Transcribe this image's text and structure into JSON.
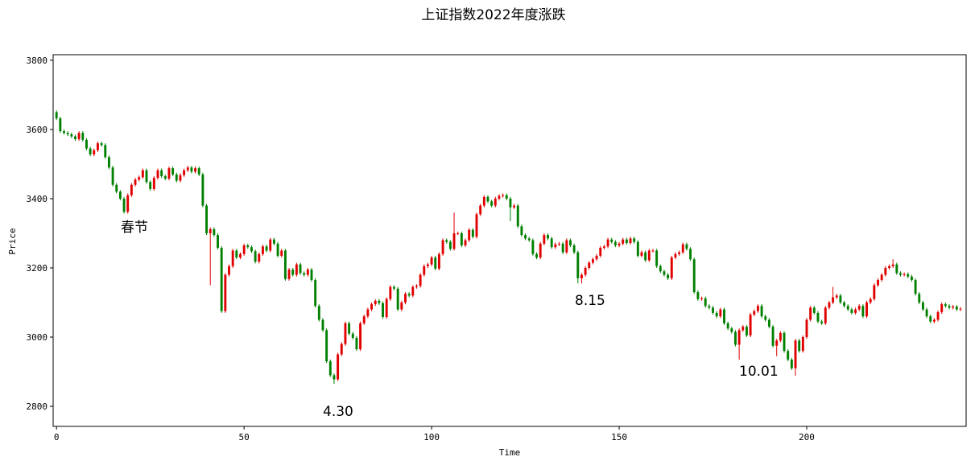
{
  "chart_data": {
    "type": "candlestick",
    "title": "上证指数2022年度涨跌",
    "xlabel": "Time",
    "ylabel": "Price",
    "up_color": "#e00000",
    "down_color": "#008000",
    "xlim": [
      -0.9,
      242.5
    ],
    "ylim": [
      2742,
      3816
    ],
    "xticks": [
      0,
      50,
      100,
      150,
      200
    ],
    "yticks": [
      2800,
      3000,
      3200,
      3400,
      3600,
      3800
    ],
    "annotations": [
      "春节",
      "4.30",
      "8.15",
      "10.01"
    ],
    "x": [
      0,
      1,
      2,
      3,
      4,
      5,
      6,
      7,
      8,
      9,
      10,
      11,
      12,
      13,
      14,
      15,
      16,
      17,
      18,
      19,
      20,
      21,
      22,
      23,
      24,
      25,
      26,
      27,
      28,
      29,
      30,
      31,
      32,
      33,
      34,
      35,
      36,
      37,
      38,
      39,
      40,
      41,
      42,
      43,
      44,
      45,
      46,
      47,
      48,
      49,
      50,
      51,
      52,
      53,
      54,
      55,
      56,
      57,
      58,
      59,
      60,
      61,
      62,
      63,
      64,
      65,
      66,
      67,
      68,
      69,
      70,
      71,
      72,
      73,
      74,
      75,
      76,
      77,
      78,
      79,
      80,
      81,
      82,
      83,
      84,
      85,
      86,
      87,
      88,
      89,
      90,
      91,
      92,
      93,
      94,
      95,
      96,
      97,
      98,
      99,
      100,
      101,
      102,
      103,
      104,
      105,
      106,
      107,
      108,
      109,
      110,
      111,
      112,
      113,
      114,
      115,
      116,
      117,
      118,
      119,
      120,
      121,
      122,
      123,
      124,
      125,
      126,
      127,
      128,
      129,
      130,
      131,
      132,
      133,
      134,
      135,
      136,
      137,
      138,
      139,
      140,
      141,
      142,
      143,
      144,
      145,
      146,
      147,
      148,
      149,
      150,
      151,
      152,
      153,
      154,
      155,
      156,
      157,
      158,
      159,
      160,
      161,
      162,
      163,
      164,
      165,
      166,
      167,
      168,
      169,
      170,
      171,
      172,
      173,
      174,
      175,
      176,
      177,
      178,
      179,
      180,
      181,
      182,
      183,
      184,
      185,
      186,
      187,
      188,
      189,
      190,
      191,
      192,
      193,
      194,
      195,
      196,
      197,
      198,
      199,
      200,
      201,
      202,
      203,
      204,
      205,
      206,
      207,
      208,
      209,
      210,
      211,
      212,
      213,
      214,
      215,
      216,
      217,
      218,
      219,
      220,
      221,
      222,
      223,
      224,
      225,
      226,
      227,
      228,
      229,
      230,
      231,
      232,
      233,
      234,
      235,
      236,
      237,
      238,
      239,
      240,
      241
    ],
    "open": [
      3650,
      3632,
      3595,
      3590,
      3586,
      3580,
      3572,
      3590,
      3570,
      3545,
      3528,
      3540,
      3560,
      3555,
      3520,
      3490,
      3440,
      3420,
      3400,
      3362,
      3410,
      3440,
      3455,
      3462,
      3482,
      3448,
      3428,
      3460,
      3482,
      3465,
      3458,
      3488,
      3470,
      3452,
      3468,
      3482,
      3490,
      3478,
      3488,
      3470,
      3380,
      3300,
      3312,
      3295,
      3258,
      3075,
      3180,
      3205,
      3250,
      3230,
      3240,
      3265,
      3260,
      3248,
      3218,
      3240,
      3262,
      3250,
      3282,
      3270,
      3235,
      3250,
      3168,
      3195,
      3180,
      3210,
      3185,
      3180,
      3195,
      3165,
      3090,
      3050,
      3020,
      2930,
      2890,
      2878,
      2950,
      2980,
      3040,
      3010,
      2998,
      2965,
      3040,
      3060,
      3080,
      3095,
      3105,
      3098,
      3058,
      3110,
      3145,
      3140,
      3080,
      3100,
      3125,
      3120,
      3145,
      3148,
      3180,
      3205,
      3210,
      3230,
      3198,
      3240,
      3280,
      3275,
      3255,
      3300,
      3300,
      3265,
      3280,
      3310,
      3290,
      3355,
      3380,
      3405,
      3392,
      3380,
      3400,
      3408,
      3410,
      3400,
      3375,
      3380,
      3320,
      3295,
      3285,
      3280,
      3240,
      3230,
      3270,
      3295,
      3285,
      3260,
      3268,
      3270,
      3245,
      3280,
      3265,
      3245,
      3170,
      3180,
      3200,
      3215,
      3225,
      3235,
      3258,
      3262,
      3282,
      3275,
      3265,
      3270,
      3282,
      3272,
      3285,
      3275,
      3235,
      3245,
      3222,
      3250,
      3250,
      3205,
      3190,
      3180,
      3170,
      3230,
      3240,
      3245,
      3268,
      3255,
      3225,
      3130,
      3110,
      3112,
      3090,
      3085,
      3070,
      3060,
      3080,
      3040,
      3025,
      3015,
      2978,
      3020,
      3030,
      3005,
      3065,
      3075,
      3090,
      3060,
      3050,
      3030,
      2975,
      2990,
      3012,
      2960,
      2935,
      2910,
      2990,
      2960,
      3000,
      3050,
      3085,
      3070,
      3045,
      3040,
      3085,
      3100,
      3115,
      3120,
      3100,
      3090,
      3080,
      3070,
      3080,
      3090,
      3060,
      3100,
      3110,
      3150,
      3165,
      3180,
      3200,
      3205,
      3210,
      3185,
      3180,
      3182,
      3175,
      3165,
      3125,
      3100,
      3080,
      3060,
      3045,
      3050,
      3072,
      3095,
      3090,
      3085,
      3088,
      3080
    ],
    "high": [
      3655,
      3637,
      3600,
      3595,
      3591,
      3585,
      3595,
      3595,
      3575,
      3550,
      3545,
      3565,
      3565,
      3560,
      3525,
      3495,
      3445,
      3425,
      3405,
      3415,
      3445,
      3460,
      3467,
      3487,
      3487,
      3453,
      3465,
      3487,
      3487,
      3470,
      3493,
      3493,
      3475,
      3473,
      3487,
      3495,
      3495,
      3493,
      3493,
      3475,
      3385,
      3317,
      3317,
      3300,
      3263,
      3185,
      3210,
      3255,
      3255,
      3245,
      3270,
      3270,
      3265,
      3253,
      3245,
      3267,
      3267,
      3287,
      3287,
      3275,
      3255,
      3255,
      3200,
      3200,
      3215,
      3215,
      3190,
      3200,
      3200,
      3170,
      3095,
      3055,
      3025,
      2935,
      2895,
      2955,
      2985,
      3045,
      3045,
      3015,
      3003,
      3045,
      3065,
      3085,
      3100,
      3110,
      3110,
      3103,
      3115,
      3150,
      3150,
      3145,
      3105,
      3130,
      3130,
      3150,
      3153,
      3185,
      3210,
      3215,
      3235,
      3235,
      3245,
      3285,
      3285,
      3280,
      3360,
      3305,
      3305,
      3285,
      3315,
      3315,
      3360,
      3385,
      3410,
      3410,
      3397,
      3405,
      3413,
      3415,
      3415,
      3405,
      3385,
      3385,
      3325,
      3300,
      3290,
      3285,
      3245,
      3275,
      3300,
      3300,
      3290,
      3273,
      3275,
      3275,
      3285,
      3285,
      3270,
      3250,
      3185,
      3205,
      3220,
      3230,
      3240,
      3263,
      3267,
      3287,
      3287,
      3280,
      3275,
      3287,
      3287,
      3290,
      3290,
      3280,
      3250,
      3250,
      3255,
      3255,
      3255,
      3210,
      3195,
      3185,
      3235,
      3245,
      3250,
      3273,
      3273,
      3260,
      3230,
      3135,
      3117,
      3117,
      3095,
      3090,
      3075,
      3085,
      3085,
      3045,
      3030,
      3020,
      3025,
      3035,
      3035,
      3070,
      3080,
      3095,
      3095,
      3065,
      3055,
      3035,
      2995,
      3017,
      3017,
      2965,
      2940,
      2995,
      2995,
      3005,
      3055,
      3090,
      3090,
      3075,
      3050,
      3090,
      3105,
      3145,
      3125,
      3125,
      3105,
      3095,
      3085,
      3085,
      3095,
      3095,
      3105,
      3115,
      3155,
      3170,
      3185,
      3205,
      3210,
      3225,
      3215,
      3190,
      3187,
      3187,
      3180,
      3170,
      3130,
      3105,
      3085,
      3065,
      3055,
      3077,
      3100,
      3100,
      3095,
      3093,
      3093,
      3087
    ],
    "low": [
      3627,
      3590,
      3585,
      3581,
      3575,
      3567,
      3567,
      3565,
      3540,
      3523,
      3523,
      3535,
      3550,
      3515,
      3485,
      3435,
      3415,
      3395,
      3357,
      3357,
      3405,
      3435,
      3450,
      3457,
      3443,
      3423,
      3423,
      3455,
      3460,
      3453,
      3453,
      3465,
      3447,
      3447,
      3463,
      3477,
      3473,
      3473,
      3465,
      3375,
      3295,
      3150,
      3290,
      3253,
      3070,
      3070,
      3175,
      3200,
      3225,
      3225,
      3235,
      3255,
      3243,
      3213,
      3213,
      3235,
      3245,
      3245,
      3265,
      3230,
      3230,
      3163,
      3163,
      3175,
      3175,
      3180,
      3175,
      3175,
      3160,
      3085,
      3045,
      3015,
      2925,
      2885,
      2865,
      2873,
      2945,
      2975,
      3005,
      2993,
      2960,
      2960,
      3035,
      3055,
      3075,
      3090,
      3093,
      3053,
      3053,
      3105,
      3135,
      3075,
      3075,
      3095,
      3115,
      3115,
      3140,
      3143,
      3175,
      3200,
      3205,
      3193,
      3193,
      3235,
      3270,
      3250,
      3250,
      3295,
      3260,
      3260,
      3275,
      3285,
      3285,
      3350,
      3375,
      3387,
      3375,
      3375,
      3395,
      3403,
      3395,
      3335,
      3370,
      3315,
      3290,
      3280,
      3275,
      3235,
      3225,
      3225,
      3265,
      3280,
      3255,
      3255,
      3263,
      3240,
      3240,
      3260,
      3240,
      3155,
      3155,
      3175,
      3195,
      3210,
      3220,
      3230,
      3253,
      3257,
      3270,
      3260,
      3260,
      3265,
      3267,
      3267,
      3270,
      3230,
      3230,
      3217,
      3217,
      3245,
      3200,
      3185,
      3175,
      3165,
      3165,
      3225,
      3235,
      3240,
      3250,
      3220,
      3125,
      3105,
      3105,
      3085,
      3080,
      3065,
      3055,
      3055,
      3035,
      3020,
      3010,
      2973,
      2935,
      3015,
      3000,
      3000,
      3060,
      3070,
      3055,
      3045,
      3025,
      2970,
      2945,
      2985,
      2955,
      2930,
      2905,
      2888,
      2955,
      2955,
      2995,
      3045,
      3065,
      3040,
      3035,
      3035,
      3080,
      3095,
      3110,
      3095,
      3085,
      3075,
      3065,
      3065,
      3075,
      3055,
      3055,
      3095,
      3105,
      3145,
      3160,
      3175,
      3195,
      3200,
      3180,
      3175,
      3175,
      3170,
      3160,
      3120,
      3095,
      3075,
      3055,
      3040,
      3040,
      3045,
      3067,
      3085,
      3080,
      3080,
      3075,
      3075
    ],
    "close": [
      3632,
      3595,
      3590,
      3586,
      3580,
      3572,
      3590,
      3570,
      3545,
      3528,
      3540,
      3560,
      3555,
      3520,
      3490,
      3440,
      3420,
      3400,
      3362,
      3410,
      3440,
      3455,
      3462,
      3482,
      3448,
      3428,
      3460,
      3482,
      3465,
      3458,
      3488,
      3470,
      3452,
      3468,
      3482,
      3490,
      3478,
      3488,
      3470,
      3380,
      3300,
      3312,
      3295,
      3258,
      3075,
      3180,
      3205,
      3250,
      3230,
      3240,
      3265,
      3260,
      3248,
      3218,
      3240,
      3262,
      3250,
      3282,
      3270,
      3235,
      3250,
      3168,
      3195,
      3180,
      3210,
      3185,
      3180,
      3195,
      3165,
      3090,
      3050,
      3020,
      2930,
      2890,
      2878,
      2950,
      2980,
      3040,
      3010,
      2998,
      2965,
      3040,
      3060,
      3080,
      3095,
      3105,
      3098,
      3058,
      3110,
      3145,
      3140,
      3080,
      3100,
      3125,
      3120,
      3145,
      3148,
      3180,
      3205,
      3210,
      3230,
      3198,
      3240,
      3280,
      3275,
      3255,
      3300,
      3300,
      3265,
      3280,
      3310,
      3290,
      3355,
      3380,
      3405,
      3392,
      3380,
      3400,
      3408,
      3410,
      3400,
      3375,
      3380,
      3320,
      3295,
      3285,
      3280,
      3240,
      3230,
      3270,
      3295,
      3285,
      3260,
      3268,
      3270,
      3245,
      3280,
      3265,
      3245,
      3170,
      3180,
      3200,
      3215,
      3225,
      3235,
      3258,
      3262,
      3282,
      3275,
      3265,
      3270,
      3282,
      3272,
      3285,
      3275,
      3235,
      3245,
      3222,
      3250,
      3250,
      3205,
      3190,
      3180,
      3170,
      3230,
      3240,
      3245,
      3268,
      3255,
      3225,
      3130,
      3110,
      3112,
      3090,
      3085,
      3070,
      3060,
      3080,
      3040,
      3025,
      3015,
      2978,
      3020,
      3030,
      3005,
      3065,
      3075,
      3090,
      3060,
      3050,
      3030,
      2975,
      2990,
      3012,
      2960,
      2935,
      2910,
      2990,
      2960,
      3000,
      3050,
      3085,
      3070,
      3045,
      3040,
      3085,
      3100,
      3115,
      3120,
      3100,
      3090,
      3080,
      3070,
      3080,
      3090,
      3060,
      3100,
      3110,
      3150,
      3165,
      3180,
      3200,
      3205,
      3210,
      3185,
      3180,
      3182,
      3175,
      3165,
      3125,
      3100,
      3080,
      3060,
      3045,
      3050,
      3072,
      3095,
      3090,
      3085,
      3088,
      3080,
      3082
    ]
  }
}
